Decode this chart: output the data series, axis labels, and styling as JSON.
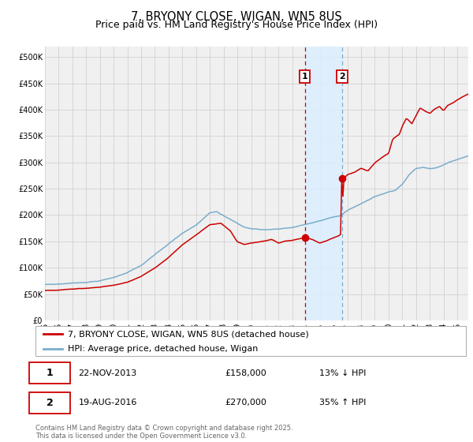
{
  "title": "7, BRYONY CLOSE, WIGAN, WN5 8US",
  "subtitle": "Price paid vs. HM Land Registry's House Price Index (HPI)",
  "ylim": [
    0,
    520000
  ],
  "xlim_start": 1995.0,
  "xlim_end": 2025.8,
  "yticks": [
    0,
    50000,
    100000,
    150000,
    200000,
    250000,
    300000,
    350000,
    400000,
    450000,
    500000
  ],
  "ytick_labels": [
    "£0",
    "£50K",
    "£100K",
    "£150K",
    "£200K",
    "£250K",
    "£300K",
    "£350K",
    "£400K",
    "£450K",
    "£500K"
  ],
  "xticks": [
    1995,
    1996,
    1997,
    1998,
    1999,
    2000,
    2001,
    2002,
    2003,
    2004,
    2005,
    2006,
    2007,
    2008,
    2009,
    2010,
    2011,
    2012,
    2013,
    2014,
    2015,
    2016,
    2017,
    2018,
    2019,
    2020,
    2021,
    2022,
    2023,
    2024,
    2025
  ],
  "xtick_labels": [
    "95",
    "96",
    "97",
    "98",
    "99",
    "00",
    "01",
    "02",
    "03",
    "04",
    "05",
    "06",
    "07",
    "08",
    "09",
    "10",
    "11",
    "12",
    "13",
    "14",
    "15",
    "16",
    "17",
    "18",
    "19",
    "20",
    "21",
    "22",
    "23",
    "24",
    "25"
  ],
  "grid_color": "#cccccc",
  "bg_color": "#ffffff",
  "plot_bg_color": "#f0f0f0",
  "red_line_color": "#cc0000",
  "blue_line_color": "#7aadcc",
  "marker_color": "#cc0000",
  "vline1_color": "#cc0000",
  "vline2_color": "#7aadcc",
  "shade_color": "#ddeeff",
  "event1_x": 2013.9,
  "event1_y": 158000,
  "event2_x": 2016.63,
  "event2_y": 270000,
  "event1_label": "1",
  "event2_label": "2",
  "legend_red": "7, BRYONY CLOSE, WIGAN, WN5 8US (detached house)",
  "legend_blue": "HPI: Average price, detached house, Wigan",
  "table_row1": [
    "1",
    "22-NOV-2013",
    "£158,000",
    "13% ↓ HPI"
  ],
  "table_row2": [
    "2",
    "19-AUG-2016",
    "£270,000",
    "35% ↑ HPI"
  ],
  "footer": "Contains HM Land Registry data © Crown copyright and database right 2025.\nThis data is licensed under the Open Government Licence v3.0.",
  "title_fontsize": 10.5,
  "subtitle_fontsize": 9,
  "tick_fontsize": 7,
  "legend_fontsize": 8,
  "table_fontsize": 8,
  "footer_fontsize": 6
}
